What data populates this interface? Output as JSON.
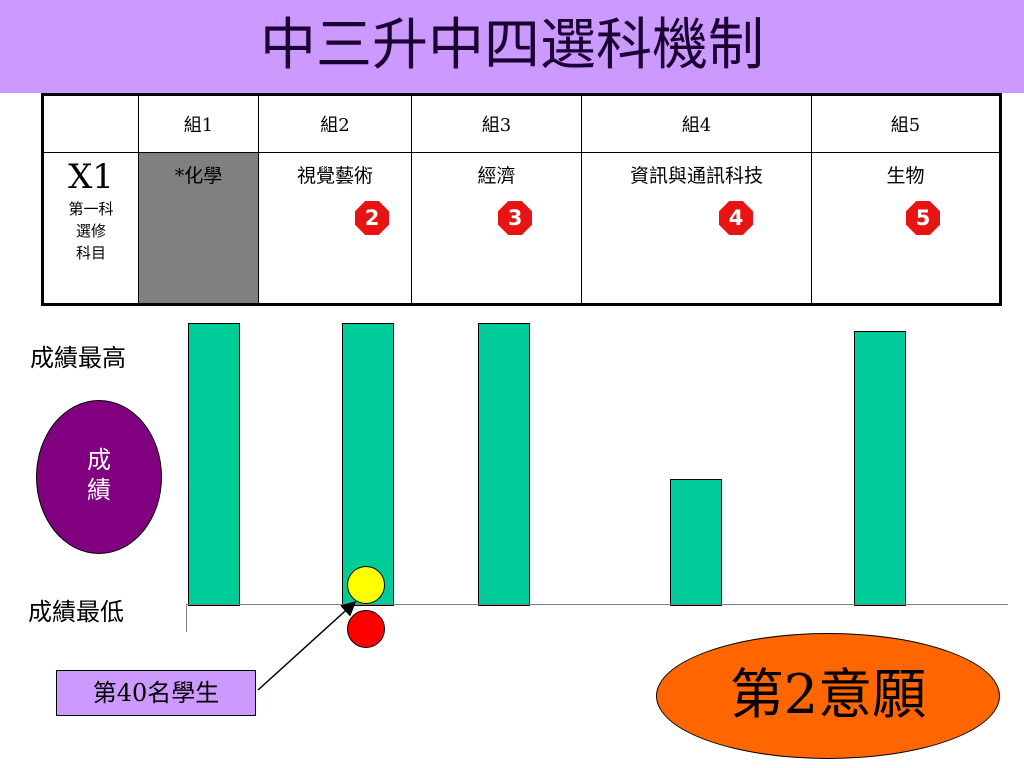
{
  "title": "中三升中四選科機制",
  "table": {
    "row_header": {
      "main": "X1",
      "sub_lines": [
        "第一科",
        "選修",
        "科目"
      ]
    },
    "groups": [
      {
        "header": "組1",
        "subject": "*化學",
        "rank": "",
        "highlight": "#808080"
      },
      {
        "header": "組2",
        "subject": "視覺藝術",
        "rank": "2"
      },
      {
        "header": "組3",
        "subject": "經濟",
        "rank": "3"
      },
      {
        "header": "組4",
        "subject": "資訊與通訊科技",
        "rank": "4"
      },
      {
        "header": "組5",
        "subject": "生物",
        "rank": "5"
      }
    ]
  },
  "chart": {
    "top_label": "成績最高",
    "bottom_label": "成績最低",
    "score_bubble_lines": [
      "成",
      "績"
    ],
    "bar_color": "#00cc99",
    "bar_levels": [
      1.0,
      1.0,
      1.0,
      0.45,
      0.97
    ]
  },
  "markers": {
    "yellow_dot_color": "#ffff00",
    "red_dot_color": "#ff0000",
    "student_label": "第40名學生"
  },
  "choice_label": "第2意願",
  "colors": {
    "title_bg": "#cc99ff",
    "bubble": "#800080",
    "rank_badge": "#e81414",
    "choice_bg": "#ff6600"
  }
}
